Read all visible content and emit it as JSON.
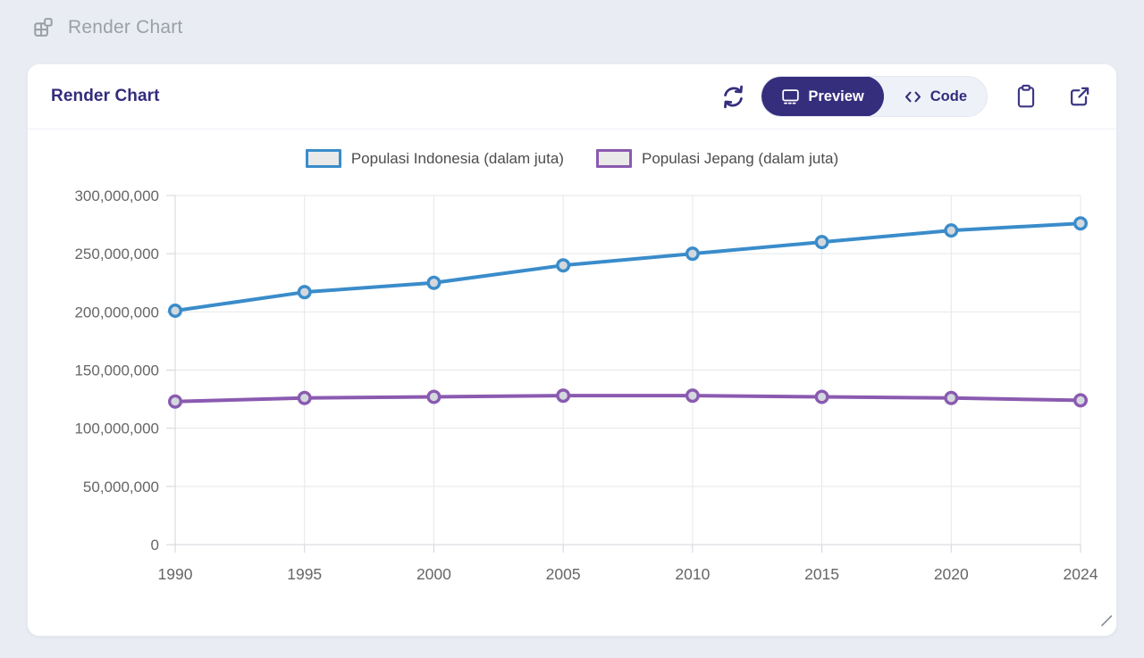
{
  "page_header": {
    "title": "Render Chart"
  },
  "card": {
    "title": "Render Chart",
    "toolbar": {
      "refresh_tooltip": "Refresh",
      "preview_label": "Preview",
      "code_label": "Code"
    }
  },
  "colors": {
    "accent_indigo": "#352e7d",
    "header_gray": "#9aa0a8",
    "legend_box_fill": "#e9e9e9",
    "grid_line": "#e5e7ea",
    "axis_border": "#d1d5da",
    "axis_text": "#666666",
    "point_fill": "#d3d8dd"
  },
  "chart_data": {
    "type": "line",
    "categories": [
      "1990",
      "1995",
      "2000",
      "2005",
      "2010",
      "2015",
      "2020",
      "2024"
    ],
    "series": [
      {
        "name": "Populasi Indonesia (dalam juta)",
        "color": "#3a8cca",
        "values": [
          201000000,
          217000000,
          225000000,
          240000000,
          250000000,
          260000000,
          270000000,
          276000000
        ]
      },
      {
        "name": "Populasi Jepang (dalam juta)",
        "color": "#8a5ab0",
        "values": [
          123000000,
          126000000,
          127000000,
          128000000,
          128000000,
          127000000,
          126000000,
          124000000
        ]
      }
    ],
    "ylim": [
      0,
      300000000
    ],
    "y_tick_step": 50000000,
    "y_tick_labels": [
      "0",
      "50,000,000",
      "100,000,000",
      "150,000,000",
      "200,000,000",
      "250,000,000",
      "300,000,000"
    ],
    "xlabel": "",
    "ylabel": "",
    "grid": true,
    "legend_position": "top"
  }
}
